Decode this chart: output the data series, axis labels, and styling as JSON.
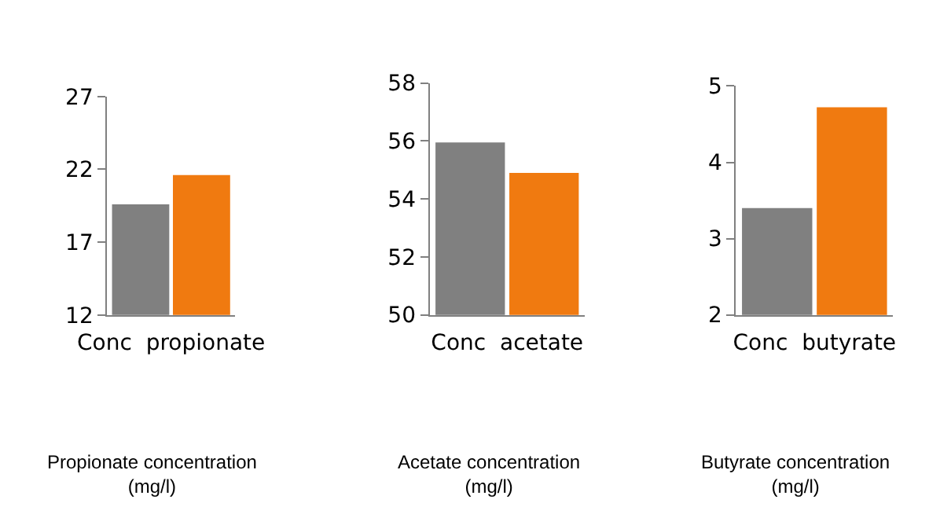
{
  "chart_data": [
    {
      "type": "bar",
      "categories": [
        null,
        null
      ],
      "values": [
        19.6,
        21.6
      ],
      "colors": [
        "#808080",
        "#f07a10"
      ],
      "ylim": [
        12,
        27
      ],
      "yticks": [
        12,
        17,
        22,
        27
      ],
      "xlabel": "Conc  propionate",
      "annotations": [
        "Propionate concentration\n(mg/l)"
      ],
      "tick_labels": "y"
    },
    {
      "type": "bar",
      "categories": [
        null,
        null
      ],
      "values": [
        55.95,
        54.9
      ],
      "colors": [
        "#808080",
        "#f07a10"
      ],
      "ylim": [
        50,
        58
      ],
      "yticks": [
        50,
        52,
        54,
        56,
        58
      ],
      "xlabel": "Conc  acetate",
      "annotations": [
        "Acetate concentration\n(mg/l)"
      ],
      "tick_labels": "y"
    },
    {
      "type": "bar",
      "categories": [
        null,
        null
      ],
      "values": [
        3.4,
        4.72
      ],
      "colors": [
        "#808080",
        "#f07a10"
      ],
      "ylim": [
        2,
        5
      ],
      "yticks": [
        2,
        3,
        4,
        5
      ],
      "xlabel": "Conc  butyrate",
      "annotations": [
        "Butyrate concentration\n(mg/l)"
      ],
      "tick_labels": "y"
    }
  ]
}
